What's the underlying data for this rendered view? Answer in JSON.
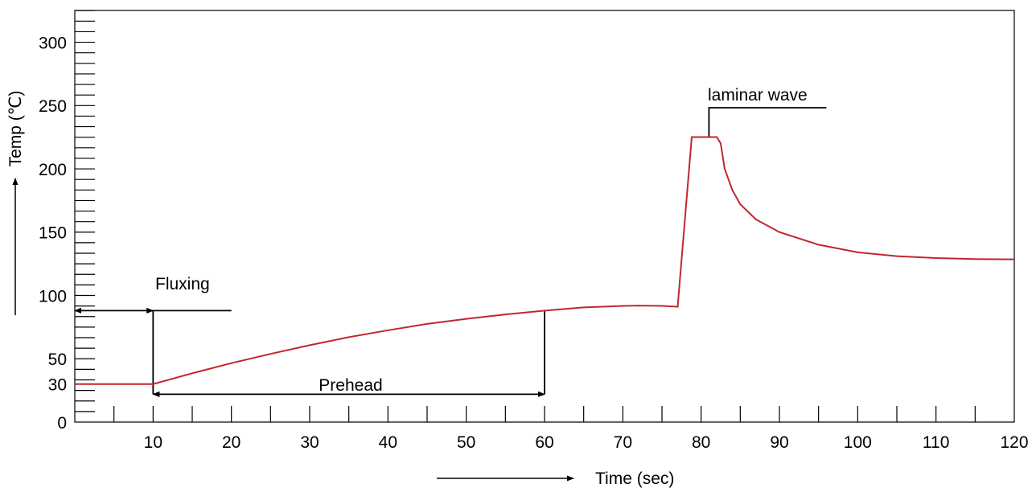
{
  "chart_data": {
    "type": "line",
    "ylabel": "Temp (℃)",
    "xlabel": "Time (sec)",
    "xlim": [
      0,
      120
    ],
    "ylim": [
      0,
      325
    ],
    "x_ticks_labeled": [
      10,
      20,
      30,
      40,
      50,
      60,
      70,
      80,
      90,
      100,
      110,
      120
    ],
    "x_ticks_minor_step": 5,
    "y_ticks_labeled": [
      0,
      30,
      50,
      100,
      150,
      200,
      250,
      300
    ],
    "y_ticks_minor_step": 8.33,
    "grid": false,
    "series": [
      {
        "color": "#c0272d",
        "points": [
          [
            0,
            30
          ],
          [
            10,
            30
          ],
          [
            15,
            38.5
          ],
          [
            20,
            46.5
          ],
          [
            25,
            53.8
          ],
          [
            30,
            60.7
          ],
          [
            35,
            67
          ],
          [
            40,
            72.5
          ],
          [
            45,
            77.5
          ],
          [
            50,
            81.5
          ],
          [
            55,
            85
          ],
          [
            60,
            88
          ],
          [
            65,
            90.5
          ],
          [
            70,
            91.7
          ],
          [
            72,
            92
          ],
          [
            75,
            91.7
          ],
          [
            76.5,
            91.3
          ],
          [
            77,
            91
          ],
          [
            78.8,
            225
          ],
          [
            82,
            225
          ],
          [
            82.5,
            220
          ],
          [
            83,
            200
          ],
          [
            84,
            183
          ],
          [
            85,
            172
          ],
          [
            87,
            160
          ],
          [
            90,
            150
          ],
          [
            95,
            140
          ],
          [
            100,
            134
          ],
          [
            105,
            131
          ],
          [
            110,
            129.5
          ],
          [
            115,
            128.7
          ],
          [
            120,
            128.5
          ]
        ]
      }
    ],
    "annotations": [
      {
        "text": "Fluxing",
        "x_from": 0,
        "x_to": 10,
        "y": 88
      },
      {
        "text": "Prehead",
        "x_from": 10,
        "x_to": 60,
        "y": 22
      },
      {
        "text": "laminar wave",
        "x": 81,
        "y": 225
      }
    ]
  }
}
